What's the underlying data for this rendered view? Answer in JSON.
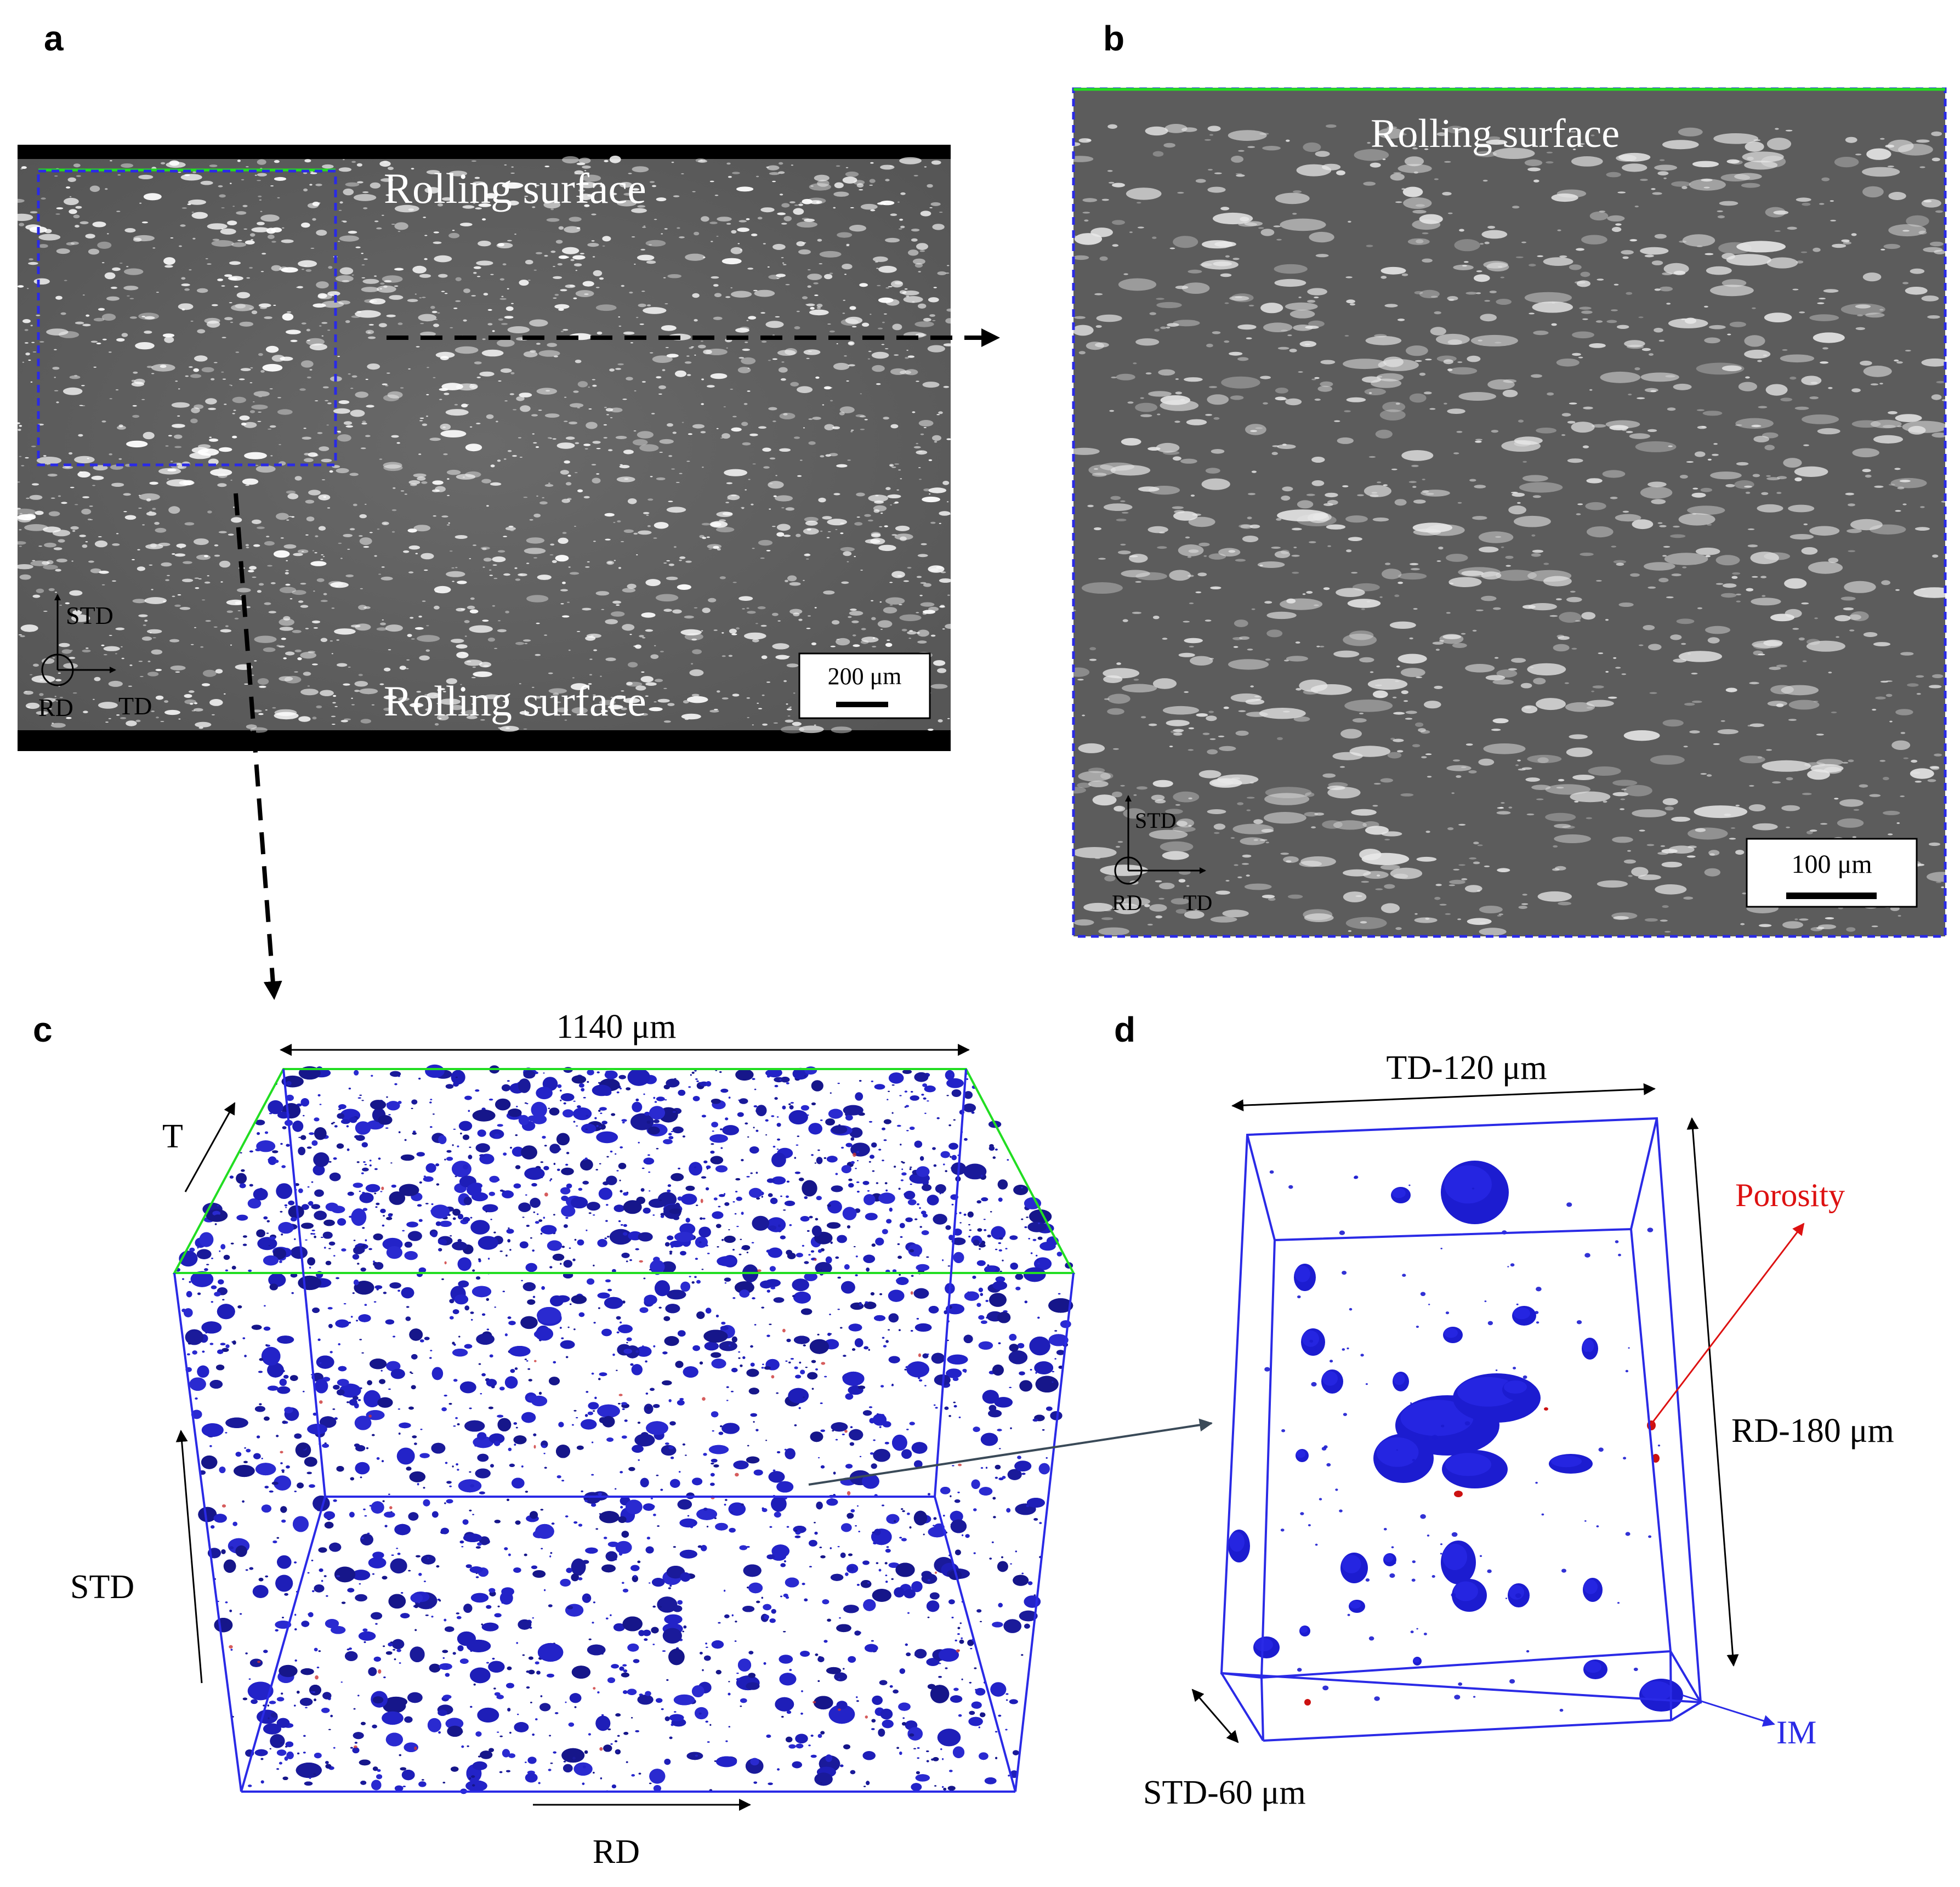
{
  "panels": {
    "a": {
      "letter": "a",
      "label_top": "Rolling surface",
      "label_bottom": "Rolling surface",
      "axis_up": "STD",
      "axis_origin": "RD",
      "axis_right": "TD",
      "scale_bar": "200 μm"
    },
    "b": {
      "letter": "b",
      "label_top": "Rolling surface",
      "axis_up": "STD",
      "axis_origin": "RD",
      "axis_right": "TD",
      "scale_bar": "100 μm"
    },
    "c": {
      "letter": "c",
      "width_label": "1140 μm",
      "axis_t": "T",
      "axis_std": "STD",
      "axis_rd": "RD"
    },
    "d": {
      "letter": "d",
      "td_label": "TD-120 μm",
      "rd_label": "RD-180  μm",
      "std_label": "STD-60 μm",
      "porosity_label": "Porosity",
      "im_label": "IM"
    }
  },
  "colors": {
    "frame_blue": "#2a2ae6",
    "rolling_green": "#22dd22",
    "particle_blue": "#1a1ad0",
    "porosity_red": "#dd1111",
    "sem_gray": "#5d5d5d"
  }
}
